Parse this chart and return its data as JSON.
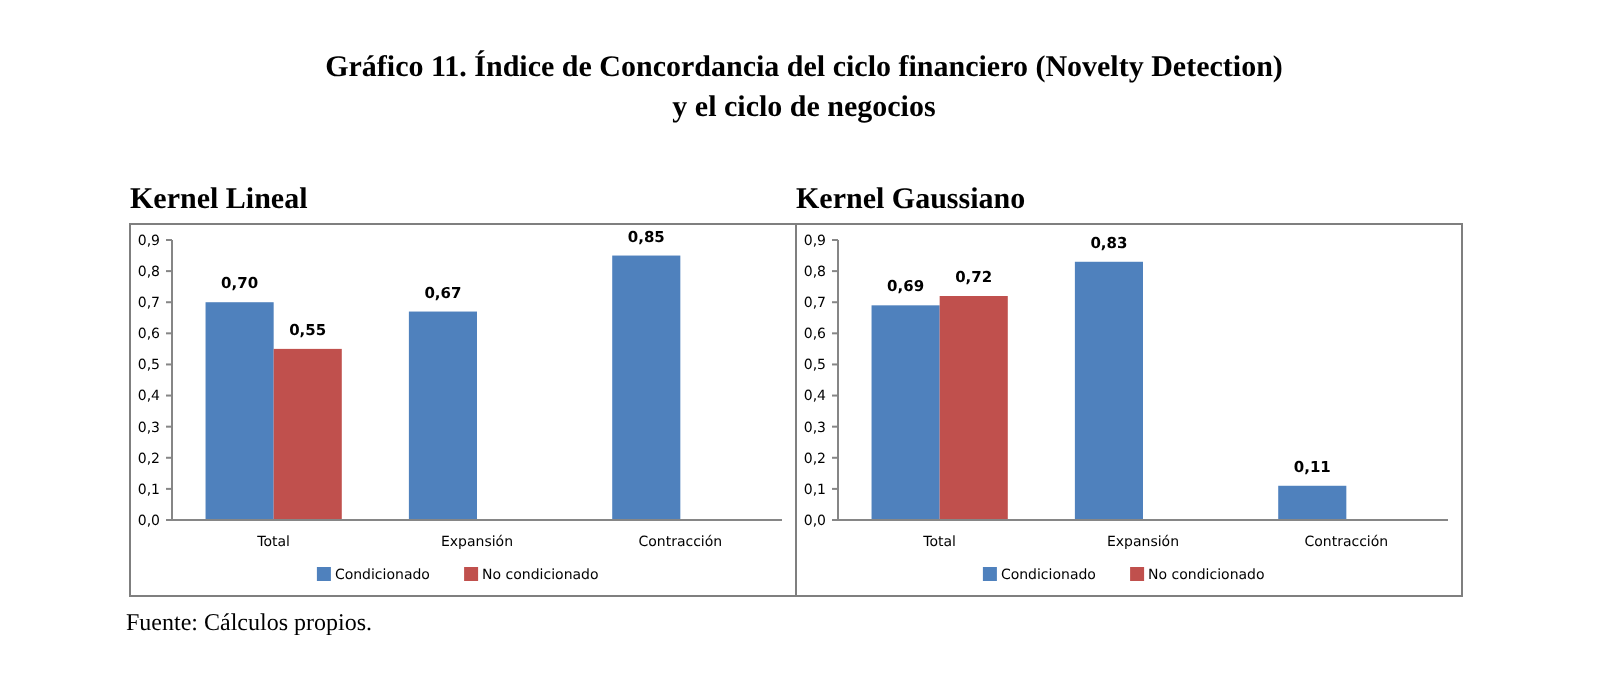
{
  "chart_data": [
    {
      "type": "bar",
      "title": "Kernel Lineal",
      "categories": [
        "Total",
        "Expansión",
        "Contracción"
      ],
      "series": [
        {
          "name": "Condicionado",
          "color": "#4f81bd",
          "values": [
            0.7,
            0.67,
            0.85
          ],
          "value_labels": [
            "0,70",
            "0,67",
            "0,85"
          ]
        },
        {
          "name": "No condicionado",
          "color": "#c0504d",
          "values": [
            0.55,
            null,
            null
          ],
          "value_labels": [
            "0,55",
            null,
            null
          ]
        }
      ],
      "ylim": [
        0,
        0.9
      ],
      "yticks": [
        {
          "value": 0,
          "label": "0,0"
        },
        {
          "value": 0.1,
          "label": "0,1"
        },
        {
          "value": 0.2,
          "label": "0,2"
        },
        {
          "value": 0.3,
          "label": "0,3"
        },
        {
          "value": 0.4,
          "label": "0,4"
        },
        {
          "value": 0.5,
          "label": "0,5"
        },
        {
          "value": 0.6,
          "label": "0,6"
        },
        {
          "value": 0.7,
          "label": "0,7"
        },
        {
          "value": 0.8,
          "label": "0,8"
        },
        {
          "value": 0.9,
          "label": "0,9"
        }
      ],
      "legend": "bottom",
      "annotations": [
        "Gráfico 11. Índice de Concordancia del ciclo financiero (Novelty Detection) y el ciclo de negocios",
        "Fuente: Cálculos propios."
      ]
    },
    {
      "type": "bar",
      "title": "Kernel Gaussiano",
      "categories": [
        "Total",
        "Expansión",
        "Contracción"
      ],
      "series": [
        {
          "name": "Condicionado",
          "color": "#4f81bd",
          "values": [
            0.69,
            0.83,
            0.11
          ],
          "value_labels": [
            "0,69",
            "0,83",
            "0,11"
          ]
        },
        {
          "name": "No condicionado",
          "color": "#c0504d",
          "values": [
            0.72,
            null,
            null
          ],
          "value_labels": [
            "0,72",
            null,
            null
          ]
        }
      ],
      "ylim": [
        0,
        0.9
      ],
      "yticks": [
        {
          "value": 0,
          "label": "0,0"
        },
        {
          "value": 0.1,
          "label": "0,1"
        },
        {
          "value": 0.2,
          "label": "0,2"
        },
        {
          "value": 0.3,
          "label": "0,3"
        },
        {
          "value": 0.4,
          "label": "0,4"
        },
        {
          "value": 0.5,
          "label": "0,5"
        },
        {
          "value": 0.6,
          "label": "0,6"
        },
        {
          "value": 0.7,
          "label": "0,7"
        },
        {
          "value": 0.8,
          "label": "0,8"
        },
        {
          "value": 0.9,
          "label": "0,9"
        }
      ],
      "legend": "bottom"
    }
  ]
}
